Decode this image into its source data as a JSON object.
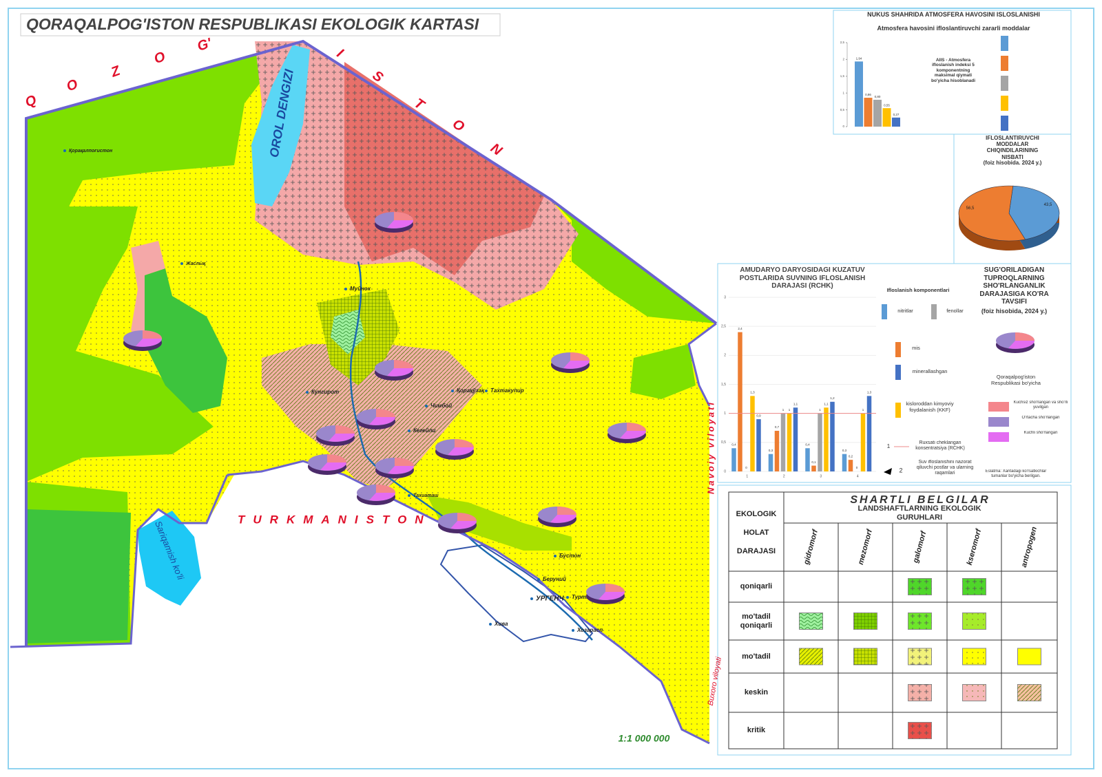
{
  "map": {
    "title": "QORAQALPOG'ISTON RESPUBLIKASI  EKOLOGIK KARTASI",
    "north_neighbor_letters": [
      "Q",
      "O",
      "Z",
      "O",
      "G'",
      "I",
      "S",
      "T",
      "O",
      "N"
    ],
    "south_neighbor": "TURKMANISTON",
    "east_neighbor": "Navoiy viloyati",
    "southeast_neighbor": "Buxoro viloyati",
    "sea": "OROL DENGIZI",
    "lake": "Sariqamish ko'li",
    "scale": "1:1 000 000",
    "places": [
      "Қорақалпоғистон",
      "Жаслық",
      "Муйнок",
      "Кунгирот",
      "Чимбой",
      "Кегейли",
      "Қорақўзақ",
      "Тахтакупир",
      "Тахиаташ",
      "Бустон",
      "Беруний",
      "Турткул",
      "УРГЕНЧ",
      "Хива",
      "Хозарасп"
    ]
  },
  "chart_data": [
    {
      "type": "bar",
      "title": "NUKUS SHAHRIDA ATMOSFERA HAVOSINI ISLOSLANISHI",
      "subtitle": "Atmosfera havosini ifloslantiruvchi zararli moddalar",
      "note": "AIIS - Atmosfera ifloslanish indeksi 5 komponentning maksimal qiymati bo'yicha hisoblanadi",
      "values": [
        1.94,
        0.86,
        0.8,
        0.55,
        0.27
      ],
      "value_labels": [
        "1,94",
        "0,86",
        "0,80",
        "0,55",
        "0,27"
      ],
      "colors": [
        "#5b9bd5",
        "#ed7d31",
        "#a5a5a5",
        "#ffc000",
        "#4472c4"
      ],
      "ylim": [
        0,
        2.5
      ],
      "yticks": [
        0,
        {
          "value": 0.5,
          "label": "0,5"
        },
        1,
        {
          "value": 1.5,
          "label": "1,5"
        },
        2,
        {
          "value": 2.5,
          "label": "2,5"
        }
      ]
    },
    {
      "type": "pie",
      "title": "IFLOSLANTIRUVCHI MODDALAR CHIQINDILARINING NISBATI",
      "subtitle": "(foiz hisobida. 2024 y.)",
      "values": [
        43.5,
        56.5
      ],
      "value_labels": [
        "43,5",
        "56,5"
      ],
      "colors": [
        "#5b9bd5",
        "#ed7d31"
      ]
    },
    {
      "type": "grouped_bar",
      "title": "AMUDARYO DARYOSIDAGI KUZATUV POSTLARIDA SUVNING IFLOSLANISH DARAJASI (RCHK)",
      "legend_title": "Ifloslanish komponentlari",
      "categories": [
        "1",
        "2",
        "3",
        "4"
      ],
      "series": [
        {
          "name": "nitritlar",
          "color": "#5b9bd5",
          "values": [
            0.4,
            0.3,
            0.4,
            0.3
          ],
          "value_labels": [
            "0,4",
            "0,3",
            "0,4",
            "0,3"
          ]
        },
        {
          "name": "mis",
          "color": "#ed7d31",
          "values": [
            2.4,
            0.7,
            0.1,
            0.2
          ],
          "value_labels": [
            "2,4",
            "0,7",
            "0,1",
            "0,2"
          ]
        },
        {
          "name": "fenollar",
          "color": "#a5a5a5",
          "values": [
            0,
            1,
            1,
            0
          ],
          "value_labels": [
            "0",
            "1",
            "1",
            "0"
          ]
        },
        {
          "name": "kisloroddan kimyoviy foydalanish (KKF)",
          "color": "#ffc000",
          "values": [
            1.3,
            1,
            1.1,
            1
          ],
          "value_labels": [
            "1,3",
            "1",
            "1,1",
            "1"
          ]
        },
        {
          "name": "minerallashgan",
          "color": "#4472c4",
          "values": [
            0.9,
            1.1,
            1.2,
            1.3
          ],
          "value_labels": [
            "0,9",
            "1,1",
            "1,2",
            "1,3"
          ]
        }
      ],
      "reference_line": {
        "value": 1,
        "label": "Ruxsati cheklangan konsentratsiya (RCHK)",
        "marker": "1"
      },
      "post_note": {
        "marker": "2",
        "label": "Suv ifloslanishini nazorat qiluvchi postlar va ularning raqamlari"
      },
      "ylim": [
        0,
        3
      ],
      "yticks": [
        0,
        {
          "value": 0.5,
          "label": "0,5"
        },
        1,
        {
          "value": 1.5,
          "label": "1,5"
        },
        2,
        {
          "value": 2.5,
          "label": "2,5"
        },
        3
      ]
    }
  ],
  "salinity_panel": {
    "title": "SUG'ORILADIGAN TUPROQLARNING SHO'RLANGANLIK DARAJASIGA KO'RA TAVSIFI",
    "subtitle": "(foiz hisobida, 2024 y.)",
    "region": "Qoraqalpog'iston Respublikasi bo'yicha",
    "legend": [
      {
        "label": "Kuchsiz sho'rlangan va sho'rli yuvilgan",
        "color": "#f4868c"
      },
      {
        "label": "O'rtacha sho'rlangan",
        "color": "#9a87cc"
      },
      {
        "label": "Kuchli sho'rlangan",
        "color": "#e46cf2"
      }
    ],
    "note": "Eslatma: Xaritadagi ko'rsatkichlar tumanlar bo'yicha berilgan."
  },
  "legend_table": {
    "title": "SHARTLI BELGILAR",
    "subtitle": "LANDSHAFTLARNING EKOLOGIK GURUHLARI",
    "row_header": [
      "EKOLOGIK",
      "HOLAT",
      "DARAJASI"
    ],
    "columns": [
      "gidromorf",
      "mezomorf",
      "galomorf",
      "kseromorf",
      "antropogen"
    ],
    "rows": [
      "qoniqarli",
      "mo'tadil qoniqarli",
      "mo'tadil",
      "keskin",
      "kritik"
    ]
  }
}
